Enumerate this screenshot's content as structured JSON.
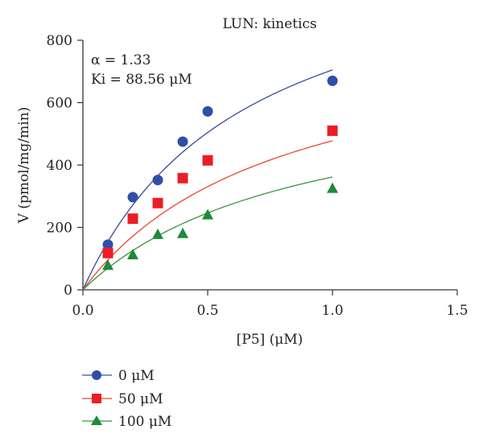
{
  "chart_data": {
    "type": "scatter",
    "title": "LUN: kinetics",
    "xlabel": "[P5] (μM)",
    "ylabel": "V (pmol/mg/min)",
    "xlim": [
      0,
      1.5
    ],
    "ylim": [
      0,
      800
    ],
    "xticks": [
      0,
      0.5,
      1.0,
      1.5
    ],
    "xtick_labels": [
      "0.0",
      "0.5",
      "1.0",
      "1.5"
    ],
    "yticks": [
      0,
      200,
      400,
      600,
      800
    ],
    "ytick_labels": [
      "0",
      "200",
      "400",
      "600",
      "800"
    ],
    "annotations": [
      "α = 1.33",
      "Ki = 88.56 μM"
    ],
    "legend_position": "bottom-left, below plot",
    "grid": false,
    "series": [
      {
        "name": "0 μM",
        "color": "#2f4ea8",
        "line_color": "#3b4a9c",
        "marker": "circle",
        "x": [
          0.1,
          0.2,
          0.3,
          0.4,
          0.5,
          1.0
        ],
        "y": [
          145,
          297,
          352,
          475,
          572,
          670
        ],
        "fit": {
          "vmax": 1170,
          "km": 0.66
        }
      },
      {
        "name": "50 μM",
        "color": "#ee1c24",
        "line_color": "#e8472a",
        "marker": "square",
        "x": [
          0.1,
          0.2,
          0.3,
          0.4,
          0.5,
          1.0
        ],
        "y": [
          118,
          228,
          278,
          358,
          415,
          510
        ],
        "fit": {
          "vmax": 860,
          "km": 0.8
        }
      },
      {
        "name": "100 μM",
        "color": "#1e8a3a",
        "line_color": "#3a9440",
        "marker": "triangle",
        "x": [
          0.1,
          0.2,
          0.3,
          0.4,
          0.5,
          1.0
        ],
        "y": [
          78,
          112,
          177,
          180,
          240,
          325
        ],
        "fit": {
          "vmax": 680,
          "km": 0.88
        }
      }
    ]
  }
}
